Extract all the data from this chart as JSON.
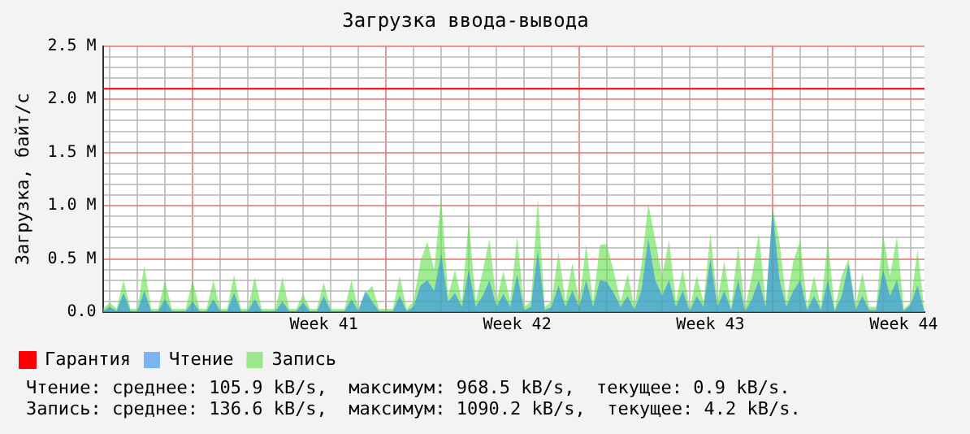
{
  "chart_data": {
    "type": "area",
    "title": "Загрузка ввода-вывода",
    "ylabel": "Загрузка, байт/с",
    "categories": [
      null,
      null,
      null,
      null,
      null,
      null,
      null,
      null,
      null,
      null,
      null,
      null,
      null,
      null,
      null,
      null,
      null,
      null,
      null,
      null,
      null,
      null,
      null,
      null,
      null,
      null,
      null,
      null,
      null,
      null,
      null,
      null,
      "Week 41",
      null,
      null,
      null,
      null,
      null,
      null,
      null,
      null,
      null,
      null,
      null,
      null,
      null,
      null,
      null,
      null,
      null,
      null,
      null,
      null,
      null,
      null,
      null,
      null,
      null,
      null,
      null,
      "Week 42",
      null,
      null,
      null,
      null,
      null,
      null,
      null,
      null,
      null,
      null,
      null,
      null,
      null,
      null,
      null,
      null,
      null,
      null,
      null,
      null,
      null,
      null,
      null,
      null,
      null,
      null,
      null,
      "Week 43",
      null,
      null,
      null,
      null,
      null,
      null,
      null,
      null,
      null,
      null,
      null,
      null,
      null,
      null,
      null,
      null,
      null,
      null,
      null,
      null,
      null,
      null,
      null,
      null,
      null,
      null,
      null,
      "Week 44",
      null,
      null,
      null
    ],
    "ylim": [
      0,
      2.5
    ],
    "yticks": [
      {
        "value": 0,
        "label": "0.0"
      },
      {
        "value": 0.1,
        "label": null
      },
      {
        "value": 0.2,
        "label": null
      },
      {
        "value": 0.3,
        "label": null
      },
      {
        "value": 0.4,
        "label": null
      },
      {
        "value": 0.5,
        "label": "0.5 M"
      },
      {
        "value": 0.6,
        "label": null
      },
      {
        "value": 0.7,
        "label": null
      },
      {
        "value": 0.8,
        "label": null
      },
      {
        "value": 0.9,
        "label": null
      },
      {
        "value": 1,
        "label": "1.0 M"
      },
      {
        "value": 1.1,
        "label": null
      },
      {
        "value": 1.2,
        "label": null
      },
      {
        "value": 1.3,
        "label": null
      },
      {
        "value": 1.4,
        "label": null
      },
      {
        "value": 1.5,
        "label": "1.5 M"
      },
      {
        "value": 1.6,
        "label": null
      },
      {
        "value": 1.7,
        "label": null
      },
      {
        "value": 1.8,
        "label": null
      },
      {
        "value": 1.9,
        "label": null
      },
      {
        "value": 2,
        "label": "2.0 M"
      },
      {
        "value": 2.1,
        "label": null
      },
      {
        "value": 2.2,
        "label": null
      },
      {
        "value": 2.3,
        "label": null
      },
      {
        "value": 2.4,
        "label": null
      },
      {
        "value": 2.5,
        "label": "2.5 M"
      }
    ],
    "grid": true,
    "legend": "bottom",
    "series": [
      {
        "name": "Гарантия",
        "type": "line",
        "color": "#ff0000",
        "values": [
          2.1,
          2.1,
          2.1,
          2.1,
          2.1,
          2.1,
          2.1,
          2.1,
          2.1,
          2.1,
          2.1,
          2.1,
          2.1,
          2.1,
          2.1,
          2.1,
          2.1,
          2.1,
          2.1,
          2.1,
          2.1,
          2.1,
          2.1,
          2.1,
          2.1,
          2.1,
          2.1,
          2.1,
          2.1,
          2.1,
          2.1,
          2.1,
          2.1,
          2.1,
          2.1,
          2.1,
          2.1,
          2.1,
          2.1,
          2.1,
          2.1,
          2.1,
          2.1,
          2.1,
          2.1,
          2.1,
          2.1,
          2.1,
          2.1,
          2.1,
          2.1,
          2.1,
          2.1,
          2.1,
          2.1,
          2.1,
          2.1,
          2.1,
          2.1,
          2.1,
          2.1,
          2.1,
          2.1,
          2.1,
          2.1,
          2.1,
          2.1,
          2.1,
          2.1,
          2.1,
          2.1,
          2.1,
          2.1,
          2.1,
          2.1,
          2.1,
          2.1,
          2.1,
          2.1,
          2.1,
          2.1,
          2.1,
          2.1,
          2.1,
          2.1,
          2.1,
          2.1,
          2.1,
          2.1,
          2.1,
          2.1,
          2.1,
          2.1,
          2.1,
          2.1,
          2.1,
          2.1,
          2.1,
          2.1,
          2.1,
          2.1,
          2.1,
          2.1,
          2.1,
          2.1,
          2.1,
          2.1,
          2.1,
          2.1,
          2.1,
          2.1,
          2.1,
          2.1,
          2.1,
          2.1,
          2.1,
          2.1,
          2.1,
          2.1,
          2.1
        ]
      },
      {
        "name": "Чтение",
        "color": "#2b8cf0",
        "values": [
          0.01,
          0.05,
          0.01,
          0.18,
          0.01,
          0.01,
          0.2,
          0.01,
          0.01,
          0.12,
          0.01,
          0.01,
          0.01,
          0.1,
          0.01,
          0.01,
          0.12,
          0.01,
          0.01,
          0.18,
          0.01,
          0.01,
          0.12,
          0.01,
          0.01,
          0.01,
          0.1,
          0.01,
          0.01,
          0.09,
          0.01,
          0.01,
          0.15,
          0.01,
          0.01,
          0.01,
          0.12,
          0.01,
          0.2,
          0.1,
          0.01,
          0.01,
          0.01,
          0.15,
          0.01,
          0.05,
          0.25,
          0.3,
          0.2,
          0.55,
          0.1,
          0.18,
          0.05,
          0.4,
          0.05,
          0.15,
          0.3,
          0.05,
          0.17,
          0.05,
          0.35,
          0.02,
          0.05,
          0.58,
          0.02,
          0.05,
          0.25,
          0.05,
          0.2,
          0.05,
          0.3,
          0.05,
          0.3,
          0.28,
          0.18,
          0.05,
          0.15,
          0.02,
          0.2,
          0.69,
          0.3,
          0.15,
          0.3,
          0.05,
          0.2,
          0.01,
          0.15,
          0.05,
          0.5,
          0.05,
          0.2,
          0.02,
          0.3,
          0.01,
          0.12,
          0.3,
          0.05,
          0.97,
          0.3,
          0.05,
          0.2,
          0.3,
          0.02,
          0.15,
          0.02,
          0.3,
          0.01,
          0.15,
          0.45,
          0.02,
          0.15,
          0.02,
          0.02,
          0.4,
          0.15,
          0.3,
          0.01,
          0.07,
          0.25,
          0
        ]
      },
      {
        "name": "Запись",
        "color": "#5fe04a",
        "values": [
          0.03,
          0.09,
          0.03,
          0.3,
          0.03,
          0.03,
          0.44,
          0.03,
          0.03,
          0.3,
          0.03,
          0.03,
          0.03,
          0.3,
          0.03,
          0.03,
          0.3,
          0.03,
          0.03,
          0.35,
          0.03,
          0.03,
          0.33,
          0.03,
          0.03,
          0.03,
          0.33,
          0.03,
          0.03,
          0.17,
          0.03,
          0.03,
          0.28,
          0.03,
          0.03,
          0.03,
          0.3,
          0.03,
          0.17,
          0.25,
          0.03,
          0.03,
          0.03,
          0.34,
          0.03,
          0.1,
          0.48,
          0.66,
          0.4,
          1.09,
          0.15,
          0.4,
          0.1,
          0.87,
          0.1,
          0.38,
          0.69,
          0.1,
          0.39,
          0.1,
          0.71,
          0.05,
          0.1,
          1.07,
          0.05,
          0.1,
          0.57,
          0.1,
          0.46,
          0.1,
          0.64,
          0.1,
          0.63,
          0.64,
          0.38,
          0.1,
          0.36,
          0.05,
          0.44,
          1.02,
          0.68,
          0.34,
          0.68,
          0.1,
          0.41,
          0.03,
          0.34,
          0.1,
          0.74,
          0.1,
          0.48,
          0.05,
          0.63,
          0.03,
          0.34,
          0.74,
          0.1,
          0.98,
          0.66,
          0.1,
          0.48,
          0.67,
          0.05,
          0.34,
          0.05,
          0.68,
          0.03,
          0.34,
          0.5,
          0.05,
          0.37,
          0.05,
          0.05,
          0.74,
          0.34,
          0.71,
          0.03,
          0.09,
          0.59,
          0
        ]
      }
    ],
    "annotations": [
      "Чтение: среднее: 105.9 kB/s,  максимум: 968.5 kB/s,  текущее: 0.9 kB/s.",
      "Запись: среднее: 136.6 kB/s,  максимум: 1090.2 kB/s,  текущее: 4.2 kB/s."
    ]
  }
}
